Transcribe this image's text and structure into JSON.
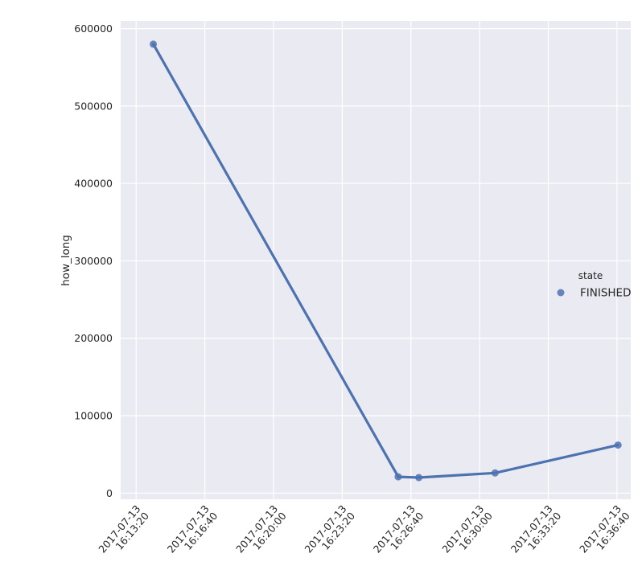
{
  "chart_data": {
    "type": "line",
    "title": "",
    "xlabel": "",
    "ylabel": "how_long",
    "x_tick_labels": [
      [
        "2017-07-13",
        "16:13:20"
      ],
      [
        "2017-07-13",
        "16:16:40"
      ],
      [
        "2017-07-13",
        "16:20:00"
      ],
      [
        "2017-07-13",
        "16:23:20"
      ],
      [
        "2017-07-13",
        "16:26:40"
      ],
      [
        "2017-07-13",
        "16:30:00"
      ],
      [
        "2017-07-13",
        "16:33:20"
      ],
      [
        "2017-07-13",
        "16:36:40"
      ]
    ],
    "y_tick_labels": [
      "0",
      "100000",
      "200000",
      "300000",
      "400000",
      "500000",
      "600000"
    ],
    "ylim": [
      -8000,
      610000
    ],
    "xlim": [
      "2017-07-13 16:12:35",
      "2017-07-13 16:37:20"
    ],
    "x_ticks": [
      "2017-07-13 16:13:20",
      "2017-07-13 16:16:40",
      "2017-07-13 16:20:00",
      "2017-07-13 16:23:20",
      "2017-07-13 16:26:40",
      "2017-07-13 16:30:00",
      "2017-07-13 16:33:20",
      "2017-07-13 16:36:40"
    ],
    "y_ticks": [
      0,
      100000,
      200000,
      300000,
      400000,
      500000,
      600000
    ],
    "grid": true,
    "legend": {
      "title": "state",
      "entries": [
        "FINISHED"
      ],
      "placement": "center-right"
    },
    "series": [
      {
        "name": "FINISHED",
        "color": "#4c72b0",
        "x": [
          "2017-07-13 16:14:10",
          "2017-07-13 16:26:03",
          "2017-07-13 16:27:03",
          "2017-07-13 16:30:45",
          "2017-07-13 16:36:43"
        ],
        "y": [
          580000,
          21000,
          20000,
          26000,
          62000
        ]
      }
    ]
  }
}
